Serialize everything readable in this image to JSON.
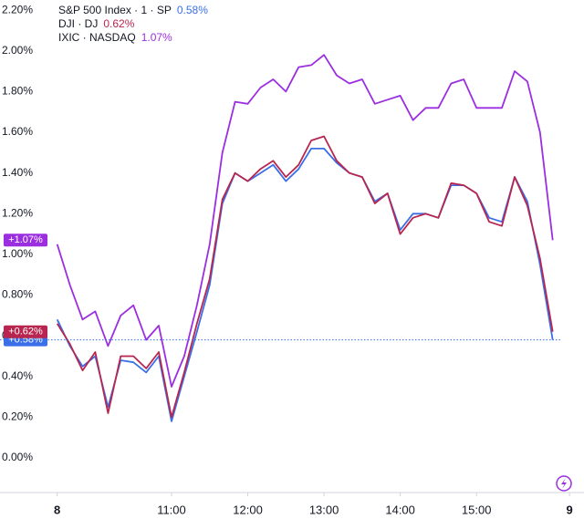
{
  "chart_data": {
    "type": "line",
    "x": [
      9.5,
      9.667,
      9.833,
      10.0,
      10.167,
      10.333,
      10.5,
      10.667,
      10.833,
      11.0,
      11.167,
      11.333,
      11.5,
      11.667,
      11.833,
      12.0,
      12.167,
      12.333,
      12.5,
      12.667,
      12.833,
      13.0,
      13.167,
      13.333,
      13.5,
      13.667,
      13.833,
      14.0,
      14.167,
      14.333,
      14.5,
      14.667,
      14.833,
      15.0,
      15.167,
      15.333,
      15.5,
      15.667,
      15.833,
      16.0
    ],
    "series": [
      {
        "name": "S&P 500 Index · 1 · SP",
        "color": "#3a6fe8",
        "legend_value": "0.58%",
        "tag": "+0.58%",
        "values": [
          0.68,
          0.55,
          0.45,
          0.5,
          0.25,
          0.48,
          0.47,
          0.42,
          0.5,
          0.18,
          0.4,
          0.62,
          0.85,
          1.25,
          1.4,
          1.36,
          1.4,
          1.44,
          1.36,
          1.42,
          1.52,
          1.52,
          1.45,
          1.4,
          1.38,
          1.26,
          1.3,
          1.12,
          1.2,
          1.2,
          1.18,
          1.34,
          1.34,
          1.3,
          1.18,
          1.16,
          1.38,
          1.26,
          0.95,
          0.58
        ]
      },
      {
        "name": "DJI · DJ",
        "color": "#b8264f",
        "legend_value": "0.62%",
        "tag": "+0.62%",
        "values": [
          0.66,
          0.56,
          0.43,
          0.52,
          0.22,
          0.5,
          0.5,
          0.44,
          0.52,
          0.2,
          0.42,
          0.66,
          0.88,
          1.27,
          1.4,
          1.36,
          1.42,
          1.46,
          1.38,
          1.44,
          1.56,
          1.58,
          1.46,
          1.4,
          1.38,
          1.25,
          1.3,
          1.1,
          1.18,
          1.2,
          1.18,
          1.35,
          1.34,
          1.3,
          1.16,
          1.14,
          1.38,
          1.24,
          0.98,
          0.62
        ]
      },
      {
        "name": "IXIC · NASDAQ",
        "color": "#9b2fe0",
        "legend_value": "1.07%",
        "tag": "+1.07%",
        "values": [
          1.05,
          0.85,
          0.68,
          0.72,
          0.55,
          0.7,
          0.75,
          0.58,
          0.65,
          0.35,
          0.5,
          0.75,
          1.05,
          1.5,
          1.75,
          1.74,
          1.82,
          1.86,
          1.8,
          1.92,
          1.93,
          1.98,
          1.88,
          1.84,
          1.86,
          1.74,
          1.76,
          1.78,
          1.66,
          1.72,
          1.72,
          1.84,
          1.86,
          1.72,
          1.72,
          1.72,
          1.9,
          1.85,
          1.6,
          1.07
        ]
      }
    ],
    "xlim": [
      8.75,
      16.41
    ],
    "ylim": [
      -0.17,
      2.25
    ],
    "xticks": [
      {
        "value": 9.5,
        "label": "8"
      },
      {
        "value": 11,
        "label": "11:00"
      },
      {
        "value": 12,
        "label": "12:00"
      },
      {
        "value": 13,
        "label": "13:00"
      },
      {
        "value": 14,
        "label": "14:00"
      },
      {
        "value": 15,
        "label": "15:00"
      },
      {
        "value": 16.22,
        "label": "9"
      }
    ],
    "yticks": [
      {
        "value": 0,
        "label": "0.00%"
      },
      {
        "value": 0.2,
        "label": "0.20%"
      },
      {
        "value": 0.4,
        "label": "0.40%"
      },
      {
        "value": 0.6,
        "label": "0.60%"
      },
      {
        "value": 0.8,
        "label": "0.80%"
      },
      {
        "value": 1.0,
        "label": "1.00%"
      },
      {
        "value": 1.2,
        "label": "1.20%"
      },
      {
        "value": 1.4,
        "label": "1.40%"
      },
      {
        "value": 1.6,
        "label": "1.60%"
      },
      {
        "value": 1.8,
        "label": "1.80%"
      },
      {
        "value": 2.0,
        "label": "2.00%"
      },
      {
        "value": 2.2,
        "label": "2.20%"
      }
    ],
    "grid": false
  }
}
